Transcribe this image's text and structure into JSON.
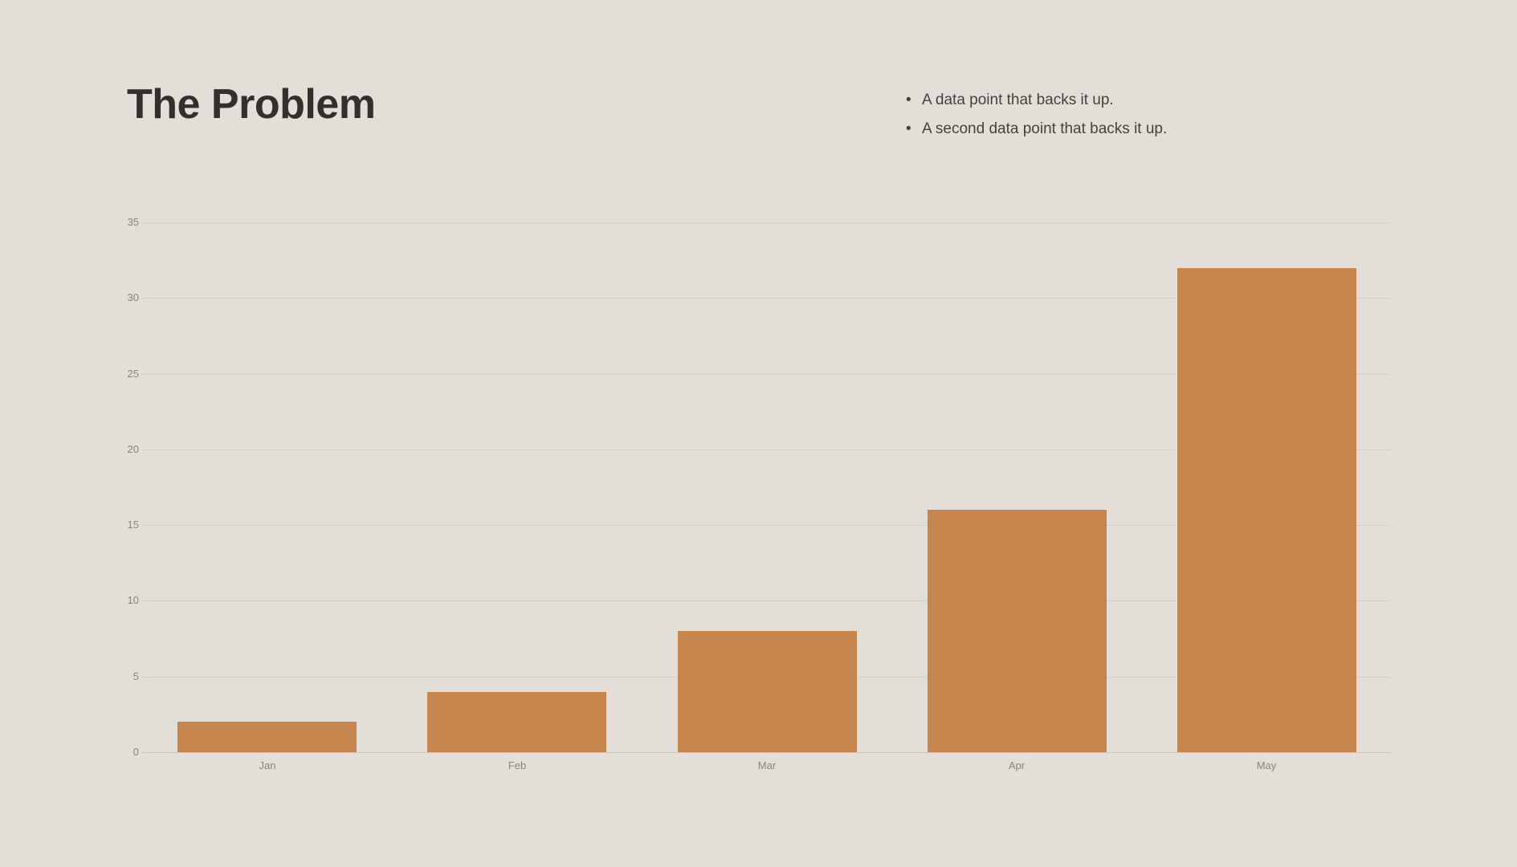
{
  "slide": {
    "title": "The Problem",
    "bullets": [
      "A data point that backs it up.",
      "A second data point that backs it up."
    ]
  },
  "icons": {
    "bullet": "•"
  },
  "chart_data": {
    "type": "bar",
    "categories": [
      "Jan",
      "Feb",
      "Mar",
      "Apr",
      "May"
    ],
    "values": [
      2,
      4,
      8,
      16,
      32
    ],
    "title": "",
    "xlabel": "",
    "ylabel": "",
    "ylim": [
      0,
      35
    ],
    "ytick_step": 5,
    "yticks": [
      0,
      5,
      10,
      15,
      20,
      25,
      30,
      35
    ],
    "grid": true,
    "legend": "none",
    "bar_color": "#c6854c",
    "gridline_color": "#d5d0ca",
    "axis_line_color": "#cbc6c0",
    "tick_label_color": "#8a847c"
  },
  "colors": {
    "background": "#e3ded8",
    "title_text": "#33302c",
    "bullet_text": "#45423e"
  }
}
